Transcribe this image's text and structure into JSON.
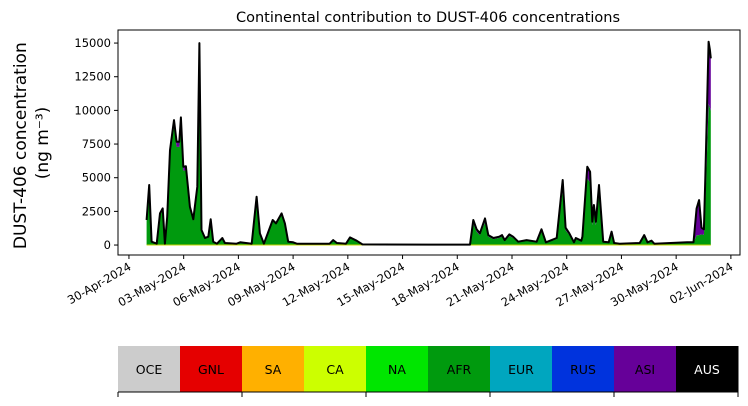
{
  "chart_data": {
    "type": "area",
    "stacked": true,
    "title": "Continental contribution to DUST-406 concentrations",
    "ylabel_line1": "DUST-406 concentration",
    "ylabel_line2": "(ng m⁻³)",
    "xlabel": "",
    "x_units": "days since 30-Apr-2024 00:00",
    "xlim": [
      -0.6,
      33.5
    ],
    "ylim": [
      -740,
      15970
    ],
    "grid": false,
    "yticks": [
      0,
      2500,
      5000,
      7500,
      10000,
      12500,
      15000
    ],
    "ytick_labels": [
      "0",
      "2500",
      "5000",
      "7500",
      "10000",
      "12500",
      "15000"
    ],
    "xticks": [
      0,
      3,
      6,
      9,
      12,
      15,
      18,
      21,
      24,
      27,
      30,
      33
    ],
    "xtick_labels": [
      "30-Apr-2024",
      "03-May-2024",
      "06-May-2024",
      "09-May-2024",
      "12-May-2024",
      "15-May-2024",
      "18-May-2024",
      "21-May-2024",
      "24-May-2024",
      "27-May-2024",
      "30-May-2024",
      "02-Jun-2024"
    ],
    "x": [
      0.97,
      1.11,
      1.24,
      1.52,
      1.7,
      1.85,
      1.97,
      2.1,
      2.25,
      2.47,
      2.61,
      2.76,
      2.85,
      2.98,
      3.12,
      3.34,
      3.53,
      3.75,
      3.86,
      3.98,
      4.17,
      4.35,
      4.48,
      4.62,
      4.83,
      5.12,
      5.26,
      5.9,
      6.1,
      6.73,
      7.0,
      7.18,
      7.4,
      7.88,
      8.06,
      8.37,
      8.55,
      8.73,
      9.0,
      9.2,
      11.0,
      11.2,
      11.4,
      11.9,
      12.12,
      12.48,
      12.8,
      16.5,
      18.7,
      18.88,
      19.06,
      19.24,
      19.52,
      19.7,
      19.98,
      20.3,
      20.45,
      20.6,
      20.85,
      21.06,
      21.34,
      21.8,
      22.35,
      22.62,
      22.86,
      23.17,
      23.45,
      23.78,
      23.94,
      24.14,
      24.4,
      24.5,
      24.8,
      24.86,
      25.13,
      25.28,
      25.4,
      25.49,
      25.6,
      25.77,
      25.91,
      26.0,
      26.3,
      26.46,
      26.6,
      26.9,
      28.0,
      28.25,
      28.43,
      28.65,
      28.8,
      29.7,
      30.6,
      30.95,
      31.12,
      31.26,
      31.39,
      31.52,
      31.6,
      31.78,
      31.85,
      31.9
    ],
    "series": [
      {
        "name": "AFR",
        "color": "#009a0e",
        "values": [
          1770,
          4240,
          240,
          95,
          2230,
          2580,
          95,
          2000,
          6700,
          8820,
          7290,
          7290,
          9010,
          5530,
          5560,
          2710,
          1810,
          4110,
          14700,
          1060,
          490,
          590,
          1810,
          240,
          95,
          490,
          140,
          95,
          190,
          95,
          3410,
          830,
          95,
          1770,
          1530,
          2230,
          1530,
          240,
          190,
          95,
          95,
          350,
          140,
          95,
          540,
          300,
          50,
          30,
          30,
          1580,
          990,
          740,
          1680,
          630,
          440,
          530,
          630,
          310,
          670,
          530,
          210,
          310,
          210,
          990,
          170,
          310,
          440,
          4110,
          1100,
          740,
          170,
          440,
          270,
          530,
          4950,
          4630,
          1470,
          2520,
          1470,
          3790,
          1580,
          210,
          170,
          840,
          130,
          80,
          130,
          630,
          170,
          270,
          80,
          130,
          170,
          170,
          720,
          740,
          790,
          770,
          2950,
          10500,
          10200,
          9960
        ]
      },
      {
        "name": "ASI",
        "color": "#660099",
        "values": [
          90,
          220,
          10,
          5,
          120,
          140,
          5,
          100,
          350,
          460,
          380,
          380,
          470,
          290,
          290,
          140,
          100,
          220,
          300,
          60,
          30,
          30,
          100,
          10,
          5,
          30,
          10,
          5,
          10,
          5,
          180,
          40,
          5,
          90,
          80,
          120,
          80,
          10,
          10,
          5,
          5,
          20,
          10,
          5,
          30,
          20,
          0,
          0,
          0,
          280,
          180,
          130,
          300,
          110,
          80,
          90,
          110,
          60,
          120,
          90,
          40,
          60,
          40,
          180,
          30,
          60,
          80,
          720,
          190,
          130,
          30,
          80,
          50,
          90,
          870,
          820,
          260,
          450,
          260,
          670,
          280,
          40,
          30,
          150,
          20,
          20,
          20,
          110,
          30,
          50,
          20,
          20,
          30,
          30,
          2000,
          2600,
          500,
          400,
          2000,
          4600,
          4300,
          3900
        ]
      }
    ],
    "total_line_color": "#000000",
    "legend": {
      "placement": "bottom colorbar",
      "entries": [
        {
          "label": "OCE",
          "color": "#cccccc"
        },
        {
          "label": "GNL",
          "color": "#e50000"
        },
        {
          "label": "SA",
          "color": "#ffb000"
        },
        {
          "label": "CA",
          "color": "#ccff00"
        },
        {
          "label": "NA",
          "color": "#00e600"
        },
        {
          "label": "AFR",
          "color": "#009a0e"
        },
        {
          "label": "EUR",
          "color": "#00a6bf"
        },
        {
          "label": "RUS",
          "color": "#0033dd"
        },
        {
          "label": "ASI",
          "color": "#660099"
        },
        {
          "label": "AUS",
          "color": "#000000"
        }
      ]
    }
  }
}
